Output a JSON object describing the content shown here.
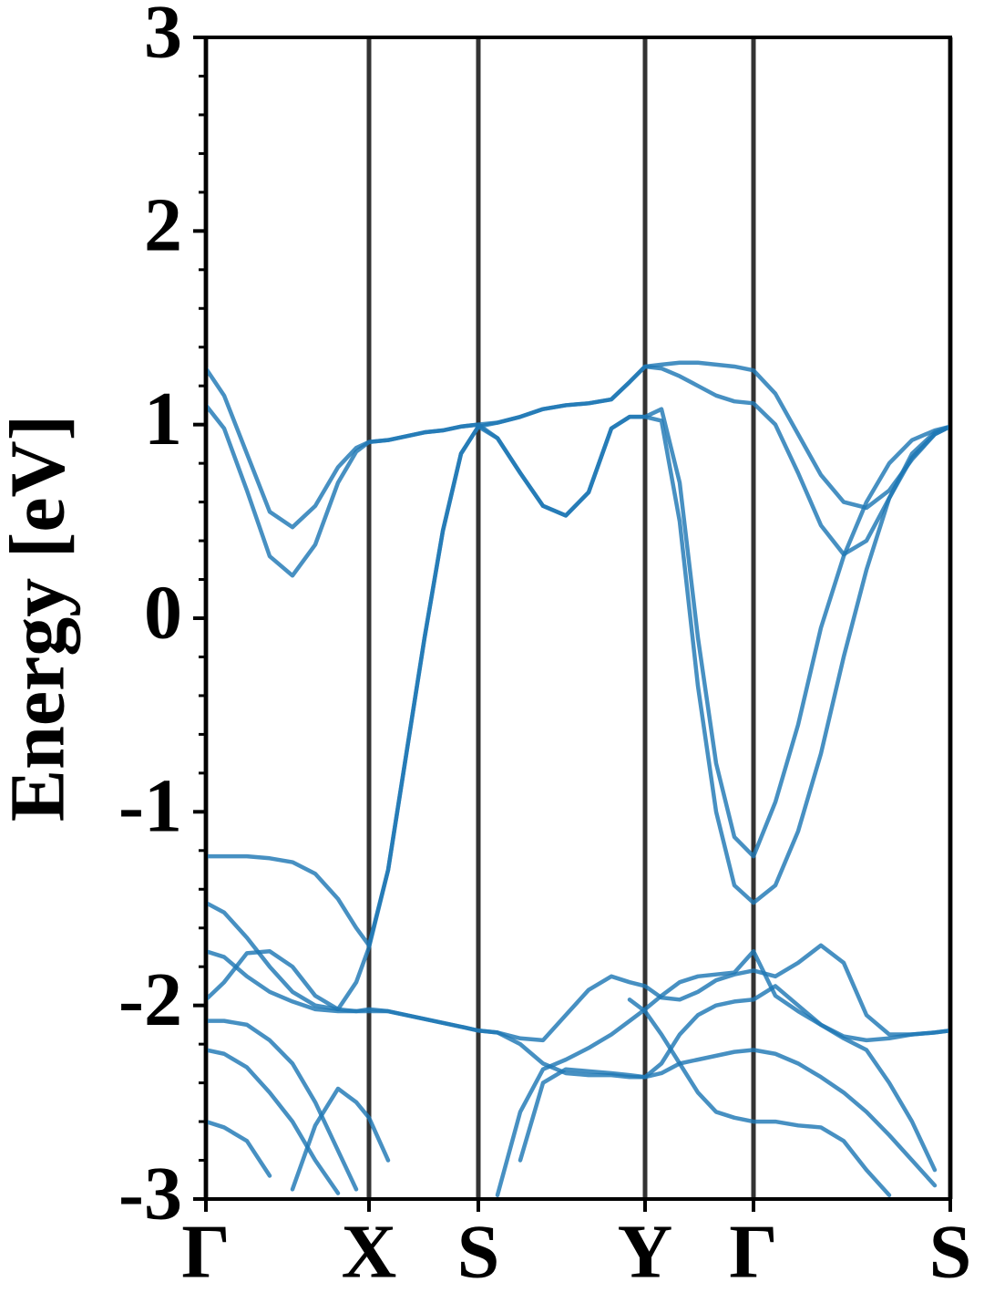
{
  "chart_data": {
    "type": "line",
    "ylabel": "Energy [eV]",
    "x": [
      0,
      20,
      45,
      70,
      95,
      120,
      145,
      165,
      179,
      200,
      220,
      240,
      260,
      280,
      299,
      320,
      345,
      370,
      395,
      420,
      445,
      465,
      482,
      500,
      520,
      540,
      560,
      580,
      601,
      625,
      650,
      675,
      700,
      725,
      750,
      775,
      800,
      817
    ],
    "xlim": [
      0,
      817
    ],
    "xticks": [
      {
        "value": 0,
        "label": "Γ"
      },
      {
        "value": 179,
        "label": "X"
      },
      {
        "value": 299,
        "label": "S"
      },
      {
        "value": 482,
        "label": "Y"
      },
      {
        "value": 601,
        "label": "Γ"
      },
      {
        "value": 817,
        "label": "S"
      }
    ],
    "xgrid": true,
    "ylim": [
      -3,
      3
    ],
    "yticks": [
      3,
      2,
      1,
      0,
      -1,
      -2,
      -3
    ],
    "yminorticks": [
      2.8,
      2.6,
      2.4,
      2.2,
      1.8,
      1.6,
      1.4,
      1.2,
      0.8,
      0.6,
      0.4,
      0.2,
      -0.2,
      -0.4,
      -0.6,
      -0.8,
      -1.2,
      -1.4,
      -1.6,
      -1.8,
      -2.2,
      -2.4,
      -2.6,
      -2.8
    ],
    "series": [
      {
        "color": "#1f77b4",
        "values": [
          1.29,
          1.15,
          0.85,
          0.55,
          0.47,
          0.58,
          0.78,
          0.88,
          0.91,
          0.92,
          0.94,
          0.96,
          0.97,
          0.99,
          1.0,
          1.01,
          1.04,
          1.08,
          1.1,
          1.11,
          1.13,
          1.22,
          1.3,
          1.31,
          1.32,
          1.32,
          1.31,
          1.3,
          1.28,
          1.16,
          0.95,
          0.74,
          0.6,
          0.57,
          0.66,
          0.82,
          0.95,
          0.99
        ]
      },
      {
        "color": "#1f77b4",
        "values": [
          1.1,
          0.98,
          0.66,
          0.32,
          0.22,
          0.38,
          0.7,
          0.86,
          0.91,
          0.92,
          0.94,
          0.96,
          0.97,
          0.99,
          1.0,
          0.93,
          0.75,
          0.58,
          0.53,
          0.65,
          0.98,
          1.04,
          1.04,
          1.08,
          0.7,
          -0.1,
          -0.75,
          -1.13,
          -1.23,
          -0.95,
          -0.55,
          -0.05,
          0.32,
          0.6,
          0.8,
          0.92,
          0.97,
          0.99
        ]
      },
      {
        "color": "#1f77b4",
        "values": [
          -1.23,
          -1.23,
          -1.23,
          -1.24,
          -1.26,
          -1.32,
          -1.45,
          -1.6,
          -1.69,
          -1.3,
          -0.7,
          -0.1,
          0.45,
          0.85,
          0.99,
          1.01,
          1.04,
          1.08,
          1.1,
          1.11,
          1.13,
          1.22,
          1.3,
          1.29,
          1.25,
          1.2,
          1.15,
          1.12,
          1.11,
          1.0,
          0.75,
          0.48,
          0.33,
          0.4,
          0.62,
          0.83,
          0.95,
          0.99
        ]
      },
      {
        "color": "#1f77b4",
        "values": [
          -1.47,
          -1.52,
          -1.65,
          -1.8,
          -1.93,
          -2.0,
          -2.02,
          -1.88,
          -1.7,
          -1.3,
          -0.7,
          -0.1,
          0.45,
          0.85,
          0.99,
          0.93,
          0.75,
          0.58,
          0.53,
          0.65,
          0.98,
          1.04,
          1.04,
          1.02,
          0.5,
          -0.35,
          -1.0,
          -1.38,
          -1.47,
          -1.38,
          -1.1,
          -0.7,
          -0.2,
          0.25,
          0.62,
          0.85,
          0.96,
          0.99
        ]
      },
      {
        "color": "#1f77b4",
        "values": [
          -1.72,
          -1.75,
          -1.85,
          -1.93,
          -1.98,
          -2.02,
          -2.03,
          -2.03,
          -2.02,
          -2.03,
          -2.05,
          -2.07,
          -2.09,
          -2.11,
          -2.13,
          -2.14,
          -2.17,
          -2.18,
          -2.05,
          -1.92,
          -1.85,
          -1.88,
          -1.9,
          -1.96,
          -1.97,
          -1.93,
          -1.87,
          -1.84,
          -1.82,
          -1.85,
          -1.78,
          -1.69,
          -1.78,
          -2.05,
          -2.15,
          -2.15,
          -2.14,
          -2.13
        ]
      },
      {
        "color": "#1f77b4",
        "values": [
          -1.97,
          -1.88,
          -1.73,
          -1.72,
          -1.8,
          -1.95,
          -2.02,
          -2.03,
          -2.03,
          -2.03,
          -2.05,
          -2.07,
          -2.09,
          -2.11,
          -2.13,
          -2.14,
          -2.2,
          -2.3,
          -2.35,
          -2.36,
          -2.36,
          -2.37,
          -2.37,
          -2.35,
          -2.3,
          -2.28,
          -2.26,
          -2.24,
          -2.23,
          -2.25,
          -2.3,
          -2.37,
          -2.45,
          -2.55,
          -2.67,
          -2.8,
          -2.93,
          null
        ]
      },
      {
        "color": "#1f77b4",
        "values": [
          -2.08,
          -2.08,
          -2.1,
          -2.18,
          -2.3,
          -2.5,
          -2.75,
          -2.95,
          null,
          null,
          null,
          null,
          null,
          null,
          null,
          -2.98,
          -2.55,
          -2.33,
          -2.28,
          -2.22,
          -2.15,
          -2.08,
          -2.02,
          -1.95,
          -1.88,
          -1.85,
          -1.84,
          -1.83,
          -1.72,
          -1.95,
          -2.03,
          -2.1,
          -2.17,
          -2.23,
          -2.4,
          -2.6,
          -2.85,
          null
        ]
      },
      {
        "color": "#1f77b4",
        "values": [
          -2.23,
          -2.25,
          -2.32,
          -2.45,
          -2.6,
          -2.8,
          -2.97,
          null,
          null,
          null,
          null,
          null,
          null,
          null,
          null,
          null,
          -2.8,
          -2.4,
          -2.33,
          -2.34,
          -2.35,
          -2.36,
          -2.37,
          -2.3,
          -2.15,
          -2.05,
          -2.0,
          -1.98,
          -1.97,
          -1.9,
          -2.0,
          -2.1,
          -2.16,
          -2.18,
          -2.17,
          -2.15,
          -2.14,
          -2.13
        ]
      },
      {
        "color": "#1f77b4",
        "values": [
          -2.6,
          -2.63,
          -2.7,
          -2.88,
          null,
          null,
          null,
          null,
          null,
          null,
          null,
          null,
          null,
          null,
          null,
          null,
          null,
          null,
          null,
          null,
          null,
          -1.97,
          -2.03,
          -2.15,
          -2.3,
          -2.45,
          -2.55,
          -2.58,
          -2.6,
          -2.6,
          -2.62,
          -2.63,
          -2.7,
          -2.85,
          -2.98,
          null,
          null,
          null
        ]
      },
      {
        "color": "#1f77b4",
        "values": [
          null,
          null,
          null,
          null,
          -2.95,
          -2.62,
          -2.43,
          -2.5,
          -2.58,
          -2.8,
          null,
          null,
          null,
          null,
          null,
          null,
          null,
          null,
          null,
          null,
          null,
          null,
          null,
          null,
          null,
          null,
          null,
          null,
          null,
          null,
          null,
          null,
          null,
          null,
          null,
          null,
          null,
          null
        ]
      }
    ]
  }
}
